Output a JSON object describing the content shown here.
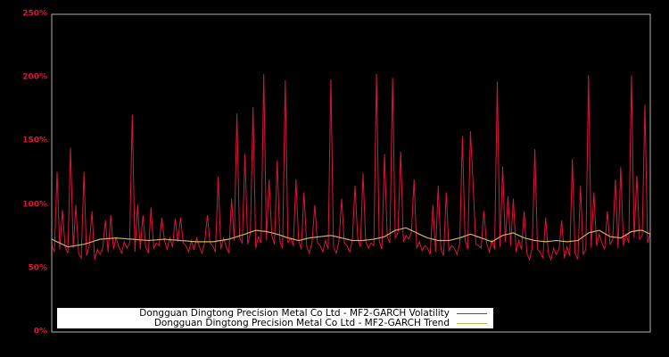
{
  "figure": {
    "background": "#000000",
    "frame_color": "#b0b0b0",
    "tick_label_color": "#DC143C",
    "legend_background": "#ffffff"
  },
  "chart_data": {
    "type": "line",
    "title": "",
    "xlabel": "",
    "ylabel": "",
    "ylim": [
      0,
      250
    ],
    "y_unit": "%",
    "grid": false,
    "x_tick_labels_visible": false,
    "legend_position": "lower center",
    "yticks": [
      {
        "label": "0%",
        "value": 0
      },
      {
        "label": "50%",
        "value": 50
      },
      {
        "label": "100%",
        "value": 100
      },
      {
        "label": "150%",
        "value": 150
      },
      {
        "label": "200%",
        "value": 200
      },
      {
        "label": "250%",
        "value": 250
      }
    ],
    "series": [
      {
        "id": "volatility",
        "name": "Dongguan Dingtong Precision Metal Co Ltd - MF2-GARCH Volatility",
        "color": "#DC143C",
        "width": 1,
        "values": [
          68,
          63,
          126,
          65,
          96,
          67,
          62,
          145,
          66,
          100,
          62,
          58,
          126,
          60,
          68,
          95,
          57,
          65,
          61,
          66,
          88,
          63,
          92,
          65,
          74,
          67,
          62,
          71,
          66,
          70,
          171,
          63,
          100,
          65,
          92,
          67,
          62,
          98,
          66,
          70,
          68,
          90,
          72,
          65,
          74,
          67,
          89,
          71,
          90,
          70,
          68,
          63,
          72,
          65,
          74,
          67,
          62,
          71,
          92,
          70,
          68,
          63,
          122,
          65,
          74,
          67,
          62,
          105,
          72,
          172,
          74,
          70,
          140,
          69,
          78,
          177,
          66,
          75,
          70,
          203,
          72,
          120,
          76,
          69,
          135,
          71,
          66,
          198,
          70,
          74,
          68,
          120,
          72,
          65,
          110,
          67,
          62,
          71,
          100,
          70,
          68,
          63,
          72,
          65,
          199,
          67,
          62,
          71,
          105,
          70,
          68,
          63,
          72,
          115,
          74,
          67,
          125,
          71,
          66,
          70,
          68,
          203,
          72,
          65,
          140,
          75,
          70,
          200,
          74,
          78,
          142,
          71,
          76,
          73,
          78,
          120,
          66,
          71,
          64,
          68,
          66,
          61,
          100,
          63,
          115,
          65,
          60,
          110,
          64,
          68,
          66,
          61,
          70,
          154,
          72,
          65,
          158,
          116,
          69,
          68,
          66,
          95,
          70,
          63,
          72,
          65,
          197,
          67,
          130,
          71,
          107,
          68,
          105,
          63,
          72,
          65,
          95,
          62,
          57,
          66,
          144,
          65,
          63,
          58,
          90,
          62,
          57,
          66,
          61,
          65,
          88,
          58,
          67,
          60,
          136,
          62,
          57,
          115,
          61,
          65,
          202,
          66,
          110,
          68,
          77,
          70,
          65,
          95,
          69,
          73,
          120,
          66,
          130,
          68,
          77,
          70,
          202,
          74,
          123,
          73,
          76,
          179,
          70,
          78
        ]
      },
      {
        "id": "trend",
        "name": "Dongguan Dingtong Precision Metal Co Ltd - MF2-GARCH Trend",
        "color": "#C9B458",
        "width": 1.2,
        "values": [
          73,
          72,
          71,
          70,
          69,
          68,
          67,
          67.3,
          67.7,
          68,
          68.3,
          68.7,
          69,
          69.7,
          70.3,
          71,
          71.7,
          72.3,
          73,
          73.2,
          73.3,
          73.5,
          73.7,
          73.8,
          74,
          73.8,
          73.7,
          73.5,
          73.3,
          73.2,
          73,
          72.8,
          72.7,
          72.5,
          72.3,
          72.2,
          72,
          72.2,
          72.3,
          72.5,
          72.7,
          72.8,
          73,
          72.8,
          72.7,
          72.5,
          72.3,
          72.2,
          72,
          71.8,
          71.7,
          71.5,
          71.3,
          71.2,
          71,
          71,
          71,
          71,
          71,
          71,
          71,
          71.3,
          71.7,
          72,
          72.3,
          72.7,
          73,
          73.7,
          74.3,
          75,
          75.7,
          76.3,
          77,
          77.8,
          78.5,
          79.3,
          80,
          79.8,
          79.5,
          79.3,
          79,
          78.5,
          78,
          77.5,
          77,
          76.3,
          75.5,
          74.8,
          74,
          73.5,
          73,
          72.5,
          72,
          72.5,
          73,
          73.5,
          74,
          74.3,
          74.5,
          74.8,
          75,
          75.3,
          75.5,
          75.8,
          76,
          75.5,
          75,
          74.5,
          74,
          73.5,
          73,
          72.5,
          72,
          72,
          72,
          72,
          72,
          72.3,
          72.5,
          72.8,
          73,
          73.5,
          74,
          74.5,
          75,
          76.3,
          77.5,
          78.8,
          80,
          80.5,
          81,
          81.5,
          82,
          81,
          80,
          79,
          78,
          77,
          76,
          75,
          74,
          73.5,
          73,
          72.5,
          72,
          72,
          72,
          72,
          72,
          72.5,
          73,
          73.5,
          74,
          74.8,
          75.5,
          76.3,
          77,
          76.3,
          75.5,
          74.8,
          74,
          73.3,
          72.5,
          71.8,
          71,
          72.3,
          73.5,
          74.8,
          76,
          76.5,
          77,
          77.5,
          78,
          77,
          76,
          75,
          74,
          73.5,
          73,
          72.5,
          72,
          71.8,
          71.5,
          71.3,
          71,
          71.3,
          71.5,
          71.8,
          72,
          71.8,
          71.5,
          71.3,
          71,
          71.3,
          71.5,
          71.8,
          72,
          73.5,
          75,
          76.5,
          78,
          78.5,
          79,
          79.5,
          80,
          78.8,
          77.5,
          76.3,
          75,
          74.8,
          74.5,
          74.3,
          74,
          75.3,
          76.5,
          77.8,
          79,
          79.3,
          79.7,
          80,
          80,
          79,
          78,
          77
        ]
      }
    ]
  }
}
